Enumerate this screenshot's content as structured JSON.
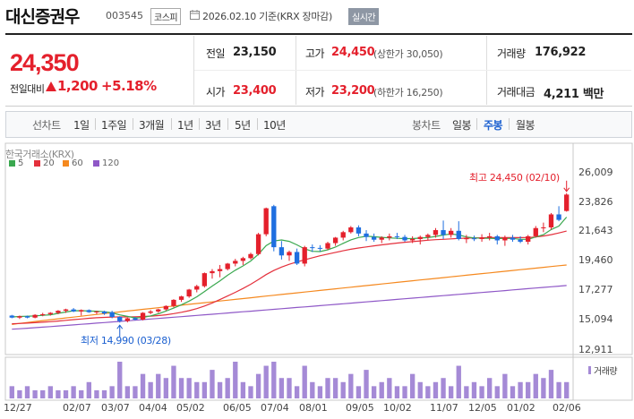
{
  "header": {
    "name": "대신증권우",
    "code": "003545",
    "market": "코스피",
    "asof": "2026.02.10  기준(KRX 장마감)",
    "realtime": "실시간"
  },
  "price": {
    "current": "24,350",
    "change_label": "전일대비",
    "change": "1,200",
    "change_pct": "+5.18%"
  },
  "quote": {
    "prev_close_label": "전일",
    "prev_close": "23,150",
    "high_label": "고가",
    "high": "24,450",
    "upper_limit": "(상한가 30,050)",
    "volume_label": "거래량",
    "volume": "176,922",
    "open_label": "시가",
    "open": "23,400",
    "low_label": "저가",
    "low": "23,200",
    "lower_limit": "(하한가 16,250)",
    "amount_label": "거래대금",
    "amount": "4,211 백만"
  },
  "period": {
    "line_label": "선차트",
    "line_tabs": [
      "1일",
      "1주일",
      "3개월",
      "1년",
      "3년",
      "5년",
      "10년"
    ],
    "candle_label": "봉차트",
    "candle_tabs": [
      "일봉",
      "주봉",
      "월봉"
    ],
    "active_candle": 1
  },
  "chart_data": {
    "type": "candlestick",
    "source": "한국거래소(KRX)",
    "legend": [
      "5",
      "20",
      "60",
      "120"
    ],
    "legend_colors": [
      "#3aa84f",
      "#e4303c",
      "#f5891f",
      "#8f58c7"
    ],
    "up_color": "#e4202c",
    "down_color": "#1f6fe0",
    "y_ticks": [
      "26,009",
      "23,826",
      "21,643",
      "19,460",
      "17,277",
      "15,094",
      "12,911"
    ],
    "ylim": [
      12911,
      26009
    ],
    "x_ticks": [
      "12/27",
      "02/07",
      "03/07",
      "04/04",
      "05/02",
      "06/05",
      "07/04",
      "08/01",
      "09/05",
      "10/02",
      "11/07",
      "12/05",
      "01/02",
      "02/06"
    ],
    "high_annotation": "최고 24,450 (02/10)",
    "low_annotation": "최저 14,990 (03/28)",
    "volume_label": "거래량",
    "candles": [
      [
        15500,
        15550,
        15300,
        15350
      ],
      [
        15350,
        15500,
        15250,
        15450
      ],
      [
        15450,
        15500,
        15300,
        15350
      ],
      [
        15350,
        15600,
        15300,
        15550
      ],
      [
        15550,
        15700,
        15450,
        15600
      ],
      [
        15600,
        15750,
        15500,
        15700
      ],
      [
        15700,
        15900,
        15600,
        15850
      ],
      [
        15850,
        16000,
        15700,
        15950
      ],
      [
        15950,
        16050,
        15750,
        15800
      ],
      [
        15800,
        15950,
        15500,
        15900
      ],
      [
        15900,
        15950,
        15700,
        15750
      ],
      [
        15750,
        15850,
        15600,
        15800
      ],
      [
        15800,
        15850,
        15550,
        15650
      ],
      [
        15750,
        15850,
        15300,
        15400
      ],
      [
        15400,
        15450,
        14990,
        15100
      ],
      [
        15100,
        15350,
        15000,
        15300
      ],
      [
        15300,
        15400,
        15150,
        15200
      ],
      [
        15200,
        15750,
        15150,
        15700
      ],
      [
        15700,
        15900,
        15600,
        15800
      ],
      [
        15800,
        16000,
        15700,
        15950
      ],
      [
        15950,
        16250,
        15850,
        16200
      ],
      [
        16200,
        16700,
        16100,
        16650
      ],
      [
        16650,
        16950,
        16500,
        16900
      ],
      [
        16900,
        17450,
        16800,
        17400
      ],
      [
        17400,
        17750,
        17200,
        17650
      ],
      [
        17650,
        18650,
        17550,
        18600
      ],
      [
        18600,
        18900,
        18200,
        18750
      ],
      [
        18750,
        19200,
        18300,
        18900
      ],
      [
        18900,
        19350,
        18800,
        19300
      ],
      [
        19300,
        19650,
        19100,
        19500
      ],
      [
        19500,
        19800,
        19200,
        19700
      ],
      [
        19700,
        20100,
        19600,
        20000
      ],
      [
        20000,
        21550,
        19900,
        21450
      ],
      [
        21450,
        23400,
        21300,
        23350
      ],
      [
        23500,
        23600,
        20200,
        20500
      ],
      [
        20500,
        20950,
        19600,
        19900
      ],
      [
        19900,
        20250,
        19500,
        20150
      ],
      [
        20150,
        20400,
        19200,
        19300
      ],
      [
        19300,
        20600,
        19100,
        20500
      ],
      [
        20500,
        20700,
        20150,
        20450
      ],
      [
        20450,
        20650,
        20200,
        20400
      ],
      [
        20400,
        20900,
        20300,
        20800
      ],
      [
        20800,
        21250,
        20600,
        21200
      ],
      [
        21200,
        21700,
        21000,
        21600
      ],
      [
        21600,
        22050,
        21500,
        21950
      ],
      [
        21950,
        22100,
        21300,
        21500
      ],
      [
        21500,
        21750,
        20950,
        21250
      ],
      [
        21250,
        21500,
        20900,
        21050
      ],
      [
        21050,
        21300,
        20800,
        21200
      ],
      [
        21200,
        21500,
        21000,
        21300
      ],
      [
        21300,
        21550,
        21100,
        21250
      ],
      [
        21250,
        21400,
        20900,
        21000
      ],
      [
        21000,
        21300,
        20800,
        21100
      ],
      [
        21100,
        21350,
        20700,
        21250
      ],
      [
        21250,
        21500,
        21000,
        21400
      ],
      [
        21400,
        21900,
        21200,
        21750
      ],
      [
        21750,
        22450,
        21100,
        21400
      ],
      [
        21400,
        21900,
        21200,
        21700
      ],
      [
        21700,
        22400,
        21000,
        21100
      ],
      [
        21100,
        21400,
        20800,
        21150
      ],
      [
        21150,
        21350,
        20950,
        21100
      ],
      [
        21100,
        21450,
        20900,
        21200
      ],
      [
        21200,
        21550,
        21000,
        21300
      ],
      [
        21300,
        21400,
        20700,
        21000
      ],
      [
        21000,
        21350,
        20600,
        21200
      ],
      [
        21200,
        21400,
        20900,
        21050
      ],
      [
        21050,
        21300,
        20800,
        20900
      ],
      [
        20900,
        21400,
        20700,
        21300
      ],
      [
        21300,
        22050,
        21200,
        21900
      ],
      [
        21900,
        22300,
        21600,
        21950
      ],
      [
        21950,
        23000,
        21800,
        22900
      ],
      [
        22900,
        23500,
        22400,
        22500
      ],
      [
        23150,
        24450,
        23100,
        24350
      ]
    ],
    "volumes": [
      3,
      2,
      3,
      2,
      2,
      3,
      2,
      2,
      3,
      2,
      4,
      2,
      2,
      3,
      9,
      3,
      3,
      6,
      4,
      6,
      5,
      8,
      5,
      5,
      4,
      4,
      7,
      4,
      5,
      9,
      4,
      3,
      6,
      8,
      9,
      5,
      5,
      3,
      8,
      4,
      3,
      5,
      5,
      4,
      6,
      3,
      7,
      3,
      4,
      5,
      3,
      3,
      6,
      4,
      3,
      4,
      5,
      3,
      8,
      3,
      4,
      3,
      5,
      3,
      6,
      3,
      4,
      4,
      6,
      5,
      7,
      4,
      4
    ],
    "ma5": [
      15400,
      15430,
      15450,
      15470,
      15520,
      15560,
      15660,
      15760,
      15850,
      15860,
      15830,
      15820,
      15780,
      15700,
      15550,
      15440,
      15330,
      15360,
      15480,
      15630,
      15830,
      16050,
      16290,
      16560,
      16870,
      17260,
      17660,
      18040,
      18450,
      18820,
      19130,
      19490,
      19990,
      20620,
      20950,
      21030,
      20930,
      20670,
      20380,
      20200,
      20180,
      20310,
      20510,
      20780,
      21040,
      21210,
      21300,
      21270,
      21220,
      21180,
      21150,
      21130,
      21130,
      21170,
      21200,
      21290,
      21390,
      21470,
      21400,
      21250,
      21180,
      21150,
      21150,
      21130,
      21150,
      21140,
      21080,
      21080,
      21250,
      21420,
      21790,
      22050,
      22700
    ],
    "ma20": [
      14900,
      14920,
      14950,
      14980,
      15010,
      15050,
      15100,
      15150,
      15200,
      15250,
      15300,
      15340,
      15370,
      15390,
      15400,
      15400,
      15410,
      15430,
      15460,
      15500,
      15560,
      15640,
      15740,
      15860,
      16010,
      16200,
      16420,
      16670,
      16930,
      17200,
      17480,
      17790,
      18130,
      18500,
      18800,
      19050,
      19250,
      19420,
      19580,
      19730,
      19870,
      20000,
      20120,
      20240,
      20350,
      20440,
      20520,
      20600,
      20670,
      20740,
      20800,
      20860,
      20910,
      20960,
      21010,
      21050,
      21080,
      21110,
      21140,
      21160,
      21180,
      21190,
      21200,
      21200,
      21200,
      21200,
      21200,
      21210,
      21250,
      21320,
      21420,
      21540,
      21680
    ]
  }
}
